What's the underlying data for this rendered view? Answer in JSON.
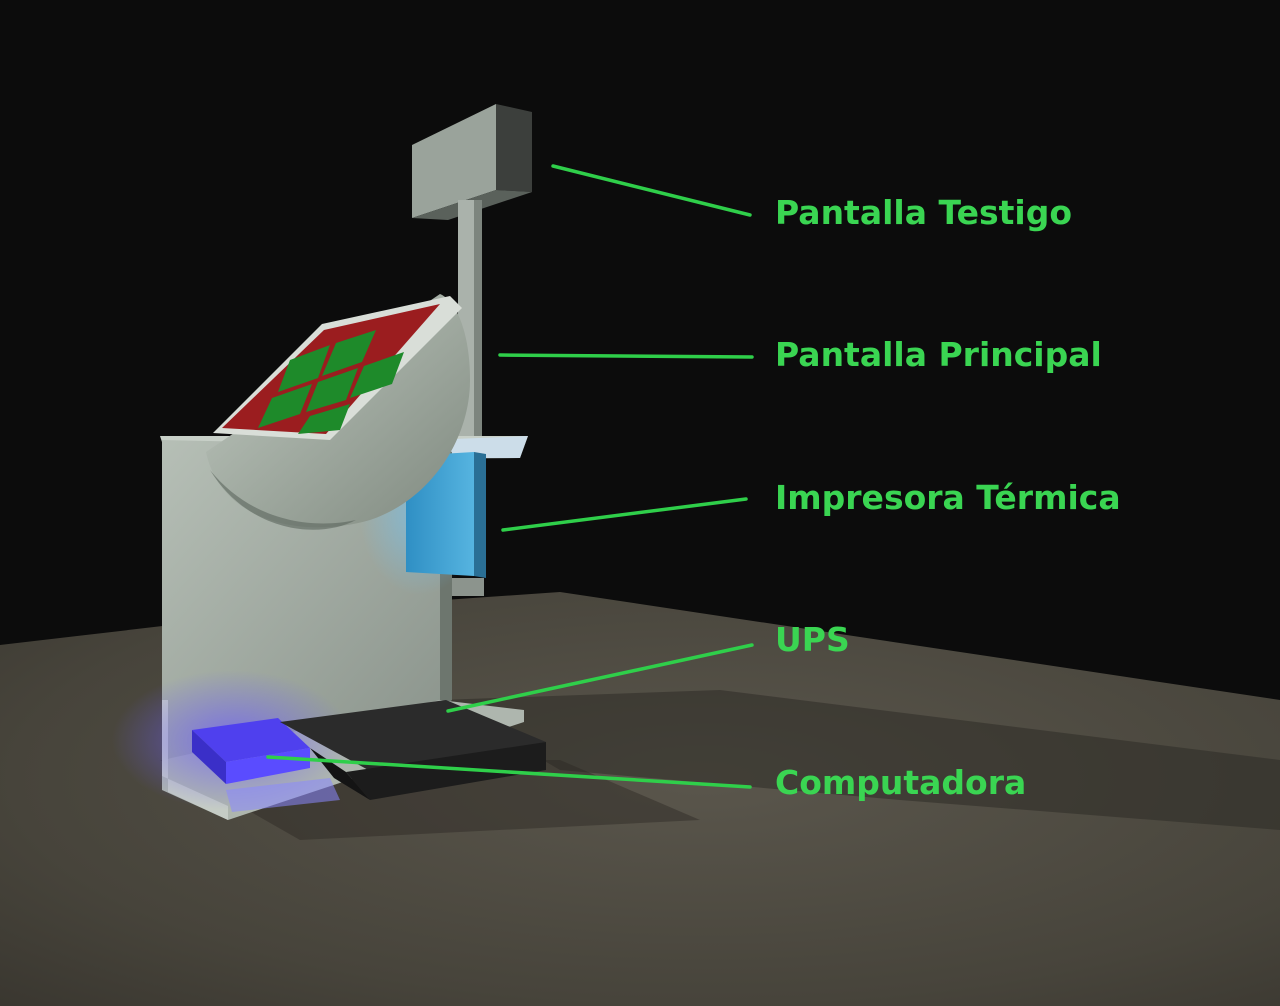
{
  "colors": {
    "label": "#3ad552",
    "leader_line": "#2fcf4a",
    "wall": "#0c0c0c",
    "floor": "#4a463d",
    "panel": "#a8b2a9",
    "printer": "#3fa2d4",
    "computer": "#4436e6",
    "ups": "#2a2a2a",
    "screen_red": "#9b1d1f",
    "screen_green": "#1e8a2a"
  },
  "labels": [
    {
      "id": "pantalla_testigo",
      "text": "Pantalla Testigo"
    },
    {
      "id": "pantalla_principal",
      "text": "Pantalla Principal"
    },
    {
      "id": "impresora_termica",
      "text": "Impresora Térmica"
    },
    {
      "id": "ups",
      "text": "UPS"
    },
    {
      "id": "computadora",
      "text": "Computadora"
    }
  ]
}
